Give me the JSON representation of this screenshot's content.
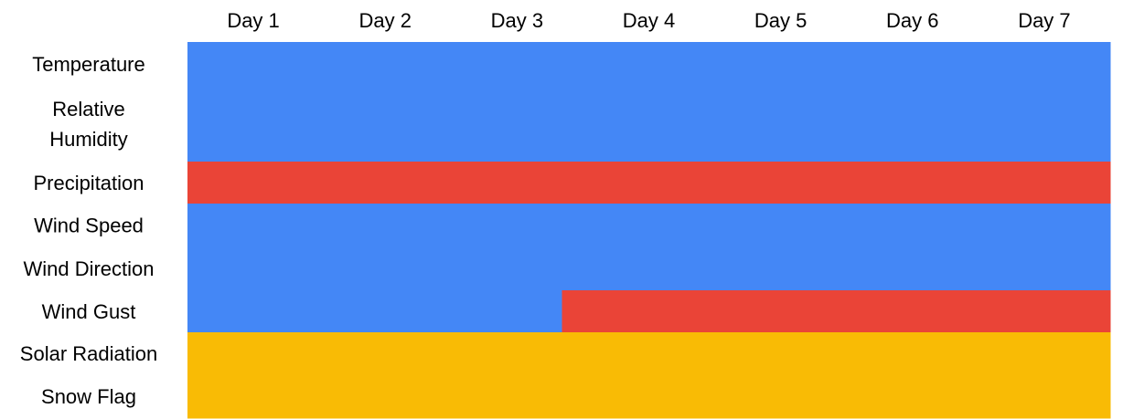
{
  "chart_data": {
    "type": "heatmap",
    "columns": [
      "Day 1",
      "Day 2",
      "Day 3",
      "Day 4",
      "Day 5",
      "Day 6",
      "Day 7"
    ],
    "rows": [
      {
        "label": [
          "Temperature"
        ]
      },
      {
        "label": [
          "Relative",
          "Humidity"
        ]
      },
      {
        "label": [
          "Precipitation"
        ]
      },
      {
        "label": [
          "Wind Speed"
        ]
      },
      {
        "label": [
          "Wind Direction"
        ]
      },
      {
        "label": [
          "Wind Gust"
        ]
      },
      {
        "label": [
          "Solar Radiation"
        ]
      },
      {
        "label": [
          "Snow Flag"
        ]
      }
    ],
    "status_colors": {
      "blue": "#4487f6",
      "red": "#ea4437",
      "yellow": "#f9bb05"
    },
    "cells": [
      [
        "blue",
        "blue",
        "blue",
        "blue",
        "blue",
        "blue",
        "blue"
      ],
      [
        "blue",
        "blue",
        "blue",
        "blue",
        "blue",
        "blue",
        "blue"
      ],
      [
        "red",
        "red",
        "red",
        "red",
        "red",
        "red",
        "red"
      ],
      [
        "blue",
        "blue",
        "blue",
        "blue",
        "blue",
        "blue",
        "blue"
      ],
      [
        "blue",
        "blue",
        "blue",
        "blue",
        "blue",
        "blue",
        "blue"
      ],
      [
        "blue",
        "blue",
        "blue",
        "red",
        "red",
        "red",
        "red"
      ],
      [
        "yellow",
        "yellow",
        "yellow",
        "yellow",
        "yellow",
        "yellow",
        "yellow"
      ],
      [
        "yellow",
        "yellow",
        "yellow",
        "yellow",
        "yellow",
        "yellow",
        "yellow"
      ]
    ],
    "transitions": [
      {
        "row": 5,
        "fraction_of_column": 0.84
      }
    ],
    "legend": "none",
    "grid": false
  }
}
